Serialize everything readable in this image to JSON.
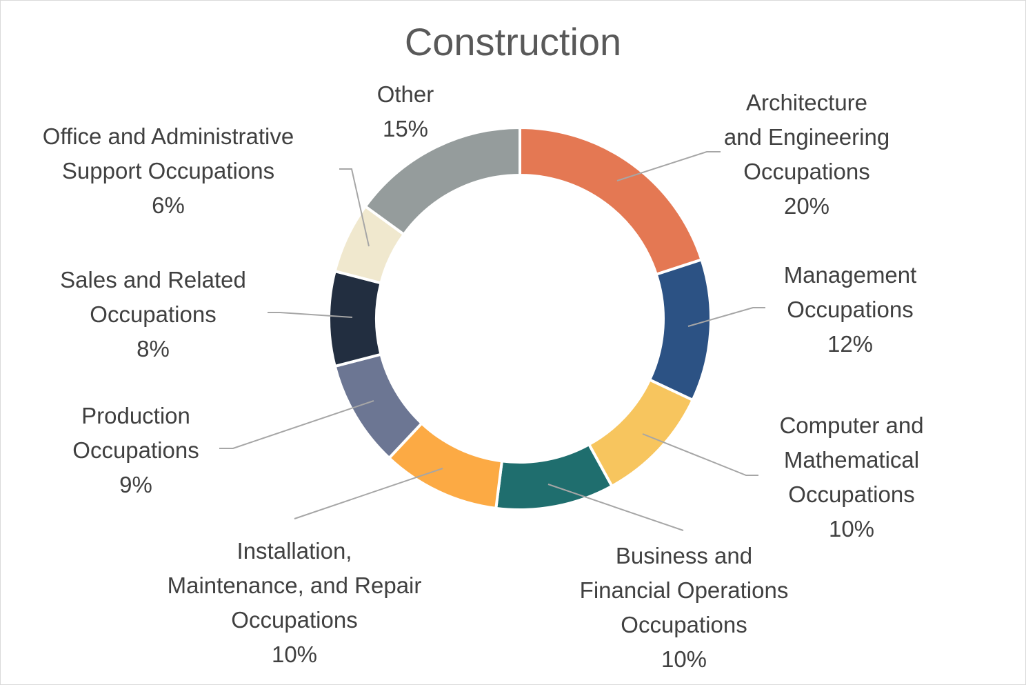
{
  "chart_data": {
    "type": "pie",
    "variant": "donut",
    "title": "Construction",
    "slices": [
      {
        "label": "Architecture and Engineering Occupations",
        "value": 20,
        "pct": "20%",
        "color": "#E47853",
        "label_lines": [
          "Architecture",
          "and Engineering",
          "Occupations"
        ]
      },
      {
        "label": "Management Occupations",
        "value": 12,
        "pct": "12%",
        "color": "#2C5284",
        "label_lines": [
          "Management",
          "Occupations"
        ]
      },
      {
        "label": "Computer and Mathematical Occupations",
        "value": 10,
        "pct": "10%",
        "color": "#F7C55E",
        "label_lines": [
          "Computer and",
          "Mathematical",
          "Occupations"
        ]
      },
      {
        "label": "Business and Financial Operations Occupations",
        "value": 10,
        "pct": "10%",
        "color": "#1F6E6E",
        "label_lines": [
          "Business and",
          "Financial Operations",
          "Occupations"
        ]
      },
      {
        "label": "Installation, Maintenance, and Repair Occupations",
        "value": 10,
        "pct": "10%",
        "color": "#FCAA44",
        "label_lines": [
          "Installation,",
          "Maintenance, and Repair",
          "Occupations"
        ]
      },
      {
        "label": "Production Occupations",
        "value": 9,
        "pct": "9%",
        "color": "#6C7693",
        "label_lines": [
          "Production",
          "Occupations"
        ]
      },
      {
        "label": "Sales and Related Occupations",
        "value": 8,
        "pct": "8%",
        "color": "#222E40",
        "label_lines": [
          "Sales and Related",
          "Occupations"
        ]
      },
      {
        "label": "Office and Administrative Support Occupations",
        "value": 6,
        "pct": "6%",
        "color": "#F0E8CE",
        "label_lines": [
          "Office and Administrative",
          "Support Occupations"
        ]
      },
      {
        "label": "Other",
        "value": 15,
        "pct": "15%",
        "color": "#959C9C",
        "label_lines": [
          "Other"
        ]
      }
    ]
  }
}
